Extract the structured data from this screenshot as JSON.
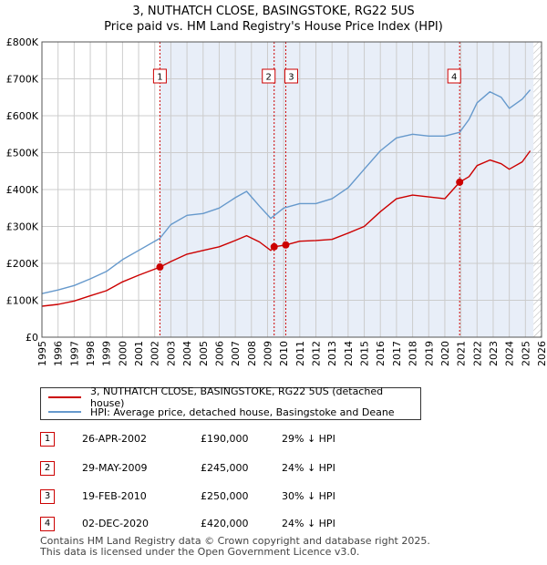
{
  "colors": {
    "property": "#cc0000",
    "hpi": "#6699cc",
    "shade": "#e8eef8",
    "grid": "#cccccc",
    "marker": "#cc0000"
  },
  "chart_data": {
    "type": "line",
    "title": "3, NUTHATCH CLOSE, BASINGSTOKE, RG22 5US",
    "subtitle": "Price paid vs. HM Land Registry's House Price Index (HPI)",
    "xlim": [
      1995,
      2026
    ],
    "ylim": [
      0,
      800000
    ],
    "x_ticks": [
      "1995",
      "1996",
      "1997",
      "1998",
      "1999",
      "2000",
      "2001",
      "2002",
      "2003",
      "2004",
      "2005",
      "2006",
      "2007",
      "2008",
      "2009",
      "2010",
      "2011",
      "2012",
      "2013",
      "2014",
      "2015",
      "2016",
      "2017",
      "2018",
      "2019",
      "2020",
      "2021",
      "2022",
      "2023",
      "2024",
      "2025",
      "2026"
    ],
    "y_ticks": [
      {
        "value": 0,
        "label": "£0"
      },
      {
        "value": 100000,
        "label": "£100K"
      },
      {
        "value": 200000,
        "label": "£200K"
      },
      {
        "value": 300000,
        "label": "£300K"
      },
      {
        "value": 400000,
        "label": "£400K"
      },
      {
        "value": 500000,
        "label": "£500K"
      },
      {
        "value": 600000,
        "label": "£600K"
      },
      {
        "value": 700000,
        "label": "£700K"
      },
      {
        "value": 800000,
        "label": "£800K"
      }
    ],
    "grid": true,
    "shaded_range": [
      2002.32,
      2025.5
    ],
    "hatched_from": 2025.5,
    "series": [
      {
        "name": "3, NUTHATCH CLOSE, BASINGSTOKE, RG22 5US (detached house)",
        "color": "#cc0000",
        "x": [
          1995.0,
          1996.0,
          1997.0,
          1998.0,
          1999.0,
          2000.0,
          2001.0,
          2002.32,
          2003.0,
          2004.0,
          2005.0,
          2006.0,
          2007.0,
          2007.7,
          2008.5,
          2009.2,
          2009.41,
          2010.13,
          2011.0,
          2012.0,
          2013.0,
          2014.0,
          2015.0,
          2016.0,
          2017.0,
          2018.0,
          2019.0,
          2020.0,
          2020.92,
          2021.5,
          2022.0,
          2022.8,
          2023.5,
          2024.0,
          2024.8,
          2025.3
        ],
        "y": [
          84000,
          89000,
          98000,
          112000,
          126000,
          150000,
          168000,
          190000,
          205000,
          225000,
          235000,
          245000,
          262000,
          275000,
          258000,
          235000,
          245000,
          250000,
          260000,
          262000,
          265000,
          282000,
          300000,
          340000,
          375000,
          385000,
          380000,
          375000,
          420000,
          435000,
          465000,
          480000,
          470000,
          455000,
          475000,
          505000
        ]
      },
      {
        "name": "HPI: Average price, detached house, Basingstoke and Deane",
        "color": "#6699cc",
        "x": [
          1995.0,
          1996.0,
          1997.0,
          1998.0,
          1999.0,
          2000.0,
          2001.0,
          2002.32,
          2003.0,
          2004.0,
          2005.0,
          2006.0,
          2007.0,
          2007.7,
          2008.5,
          2009.2,
          2010.0,
          2011.0,
          2012.0,
          2013.0,
          2014.0,
          2015.0,
          2016.0,
          2017.0,
          2018.0,
          2019.0,
          2020.0,
          2020.92,
          2021.5,
          2022.0,
          2022.8,
          2023.5,
          2024.0,
          2024.8,
          2025.3
        ],
        "y": [
          118000,
          128000,
          140000,
          158000,
          178000,
          210000,
          235000,
          268000,
          305000,
          330000,
          335000,
          350000,
          378000,
          395000,
          355000,
          322000,
          350000,
          362000,
          362000,
          375000,
          405000,
          455000,
          505000,
          540000,
          550000,
          545000,
          545000,
          555000,
          590000,
          635000,
          665000,
          650000,
          620000,
          645000,
          670000
        ]
      }
    ],
    "transactions": [
      {
        "num": "1",
        "x": 2002.32,
        "y": 190000,
        "date": "26-APR-2002",
        "price": "£190,000",
        "hpi": "29% ↓ HPI"
      },
      {
        "num": "2",
        "x": 2009.41,
        "y": 245000,
        "date": "29-MAY-2009",
        "price": "£245,000",
        "hpi": "24% ↓ HPI"
      },
      {
        "num": "3",
        "x": 2010.13,
        "y": 250000,
        "date": "19-FEB-2010",
        "price": "£250,000",
        "hpi": "30% ↓ HPI"
      },
      {
        "num": "4",
        "x": 2020.92,
        "y": 420000,
        "date": "02-DEC-2020",
        "price": "£420,000",
        "hpi": "24% ↓ HPI"
      }
    ]
  },
  "legend": {
    "property_label": "3, NUTHATCH CLOSE, BASINGSTOKE, RG22 5US (detached house)",
    "hpi_label": "HPI: Average price, detached house, Basingstoke and Deane"
  },
  "footer": {
    "line1": "Contains HM Land Registry data © Crown copyright and database right 2025.",
    "line2": "This data is licensed under the Open Government Licence v3.0."
  }
}
